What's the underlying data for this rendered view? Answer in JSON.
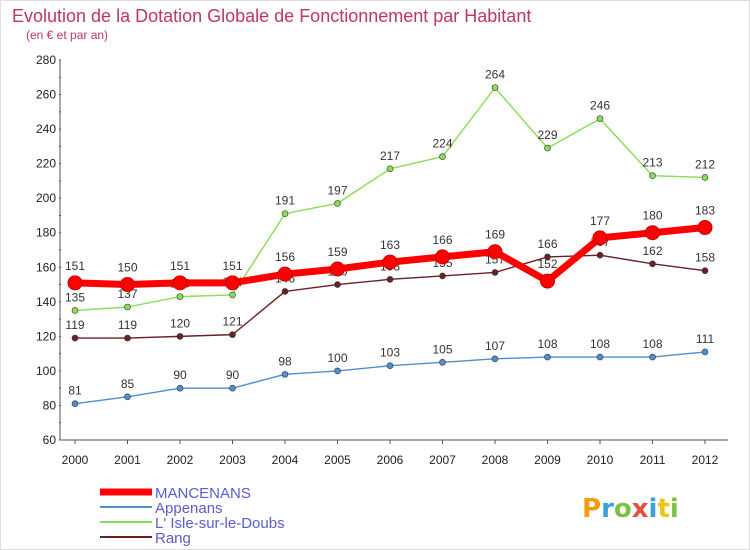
{
  "chart_data": {
    "type": "line",
    "title": "Evolution de la Dotation Globale de Fonctionnement par Habitant",
    "subtitle": "(en € et par an)",
    "x": [
      "2000",
      "2001",
      "2002",
      "2003",
      "2004",
      "2005",
      "2006",
      "2007",
      "2008",
      "2009",
      "2010",
      "2011",
      "2012"
    ],
    "ylim": [
      60,
      280
    ],
    "yticks": [
      "60",
      "80",
      "100",
      "120",
      "140",
      "160",
      "180",
      "200",
      "220",
      "240",
      "260",
      "280"
    ],
    "grid": false,
    "legend_position": "bottom-left",
    "series": [
      {
        "name": "L' Isle-sur-le-Doubs",
        "color": "#88dd55",
        "values": [
          135,
          137,
          143,
          144,
          191,
          197,
          217,
          224,
          264,
          229,
          246,
          213,
          212
        ]
      },
      {
        "name": "Rang",
        "color": "#6b2025",
        "values": [
          119,
          119,
          120,
          121,
          146,
          150,
          153,
          155,
          157,
          166,
          167,
          162,
          158
        ]
      },
      {
        "name": "Appenans",
        "color": "#4f8fcf",
        "values": [
          81,
          85,
          90,
          90,
          98,
          100,
          103,
          105,
          107,
          108,
          108,
          108,
          111
        ]
      },
      {
        "name": "MANCENANS",
        "color": "#ff0000",
        "values": [
          151,
          150,
          151,
          151,
          156,
          159,
          163,
          166,
          169,
          152,
          177,
          180,
          183
        ]
      }
    ],
    "legend": [
      "MANCENANS",
      "Appenans",
      "L' Isle-sur-le-Doubs",
      "Rang"
    ]
  },
  "logo": {
    "text": "Proxiti"
  }
}
